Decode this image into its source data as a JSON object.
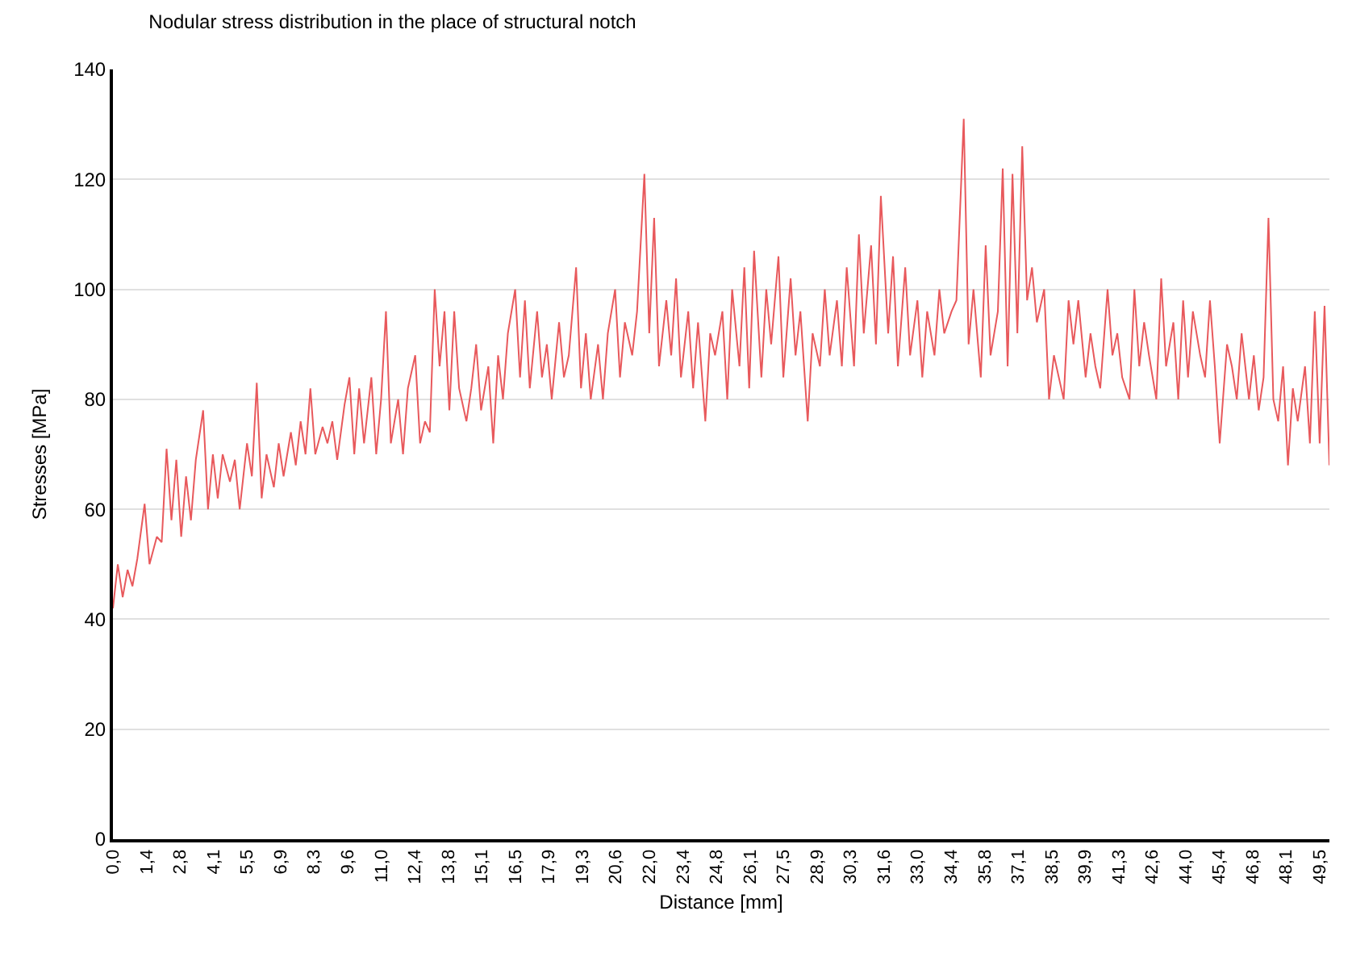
{
  "chart_data": {
    "type": "line",
    "title": "Nodular stress distribution in the place of structural notch",
    "xlabel": "Distance [mm]",
    "ylabel": "Stresses [MPa]",
    "x": [
      0.0,
      0.2,
      0.4,
      0.6,
      0.8,
      1.0,
      1.3,
      1.5,
      1.8,
      2.0,
      2.2,
      2.4,
      2.6,
      2.8,
      3.0,
      3.2,
      3.4,
      3.7,
      3.9,
      4.1,
      4.3,
      4.5,
      4.8,
      5.0,
      5.2,
      5.5,
      5.7,
      5.9,
      6.1,
      6.3,
      6.6,
      6.8,
      7.0,
      7.3,
      7.5,
      7.7,
      7.9,
      8.1,
      8.3,
      8.6,
      8.8,
      9.0,
      9.2,
      9.5,
      9.7,
      9.9,
      10.1,
      10.3,
      10.6,
      10.8,
      11.0,
      11.2,
      11.4,
      11.7,
      11.9,
      12.1,
      12.4,
      12.6,
      12.8,
      13.0,
      13.2,
      13.4,
      13.6,
      13.8,
      14.0,
      14.2,
      14.5,
      14.7,
      14.9,
      15.1,
      15.4,
      15.6,
      15.8,
      16.0,
      16.2,
      16.5,
      16.7,
      16.9,
      17.1,
      17.4,
      17.6,
      17.8,
      18.0,
      18.3,
      18.5,
      18.7,
      19.0,
      19.2,
      19.4,
      19.6,
      19.9,
      20.1,
      20.3,
      20.6,
      20.8,
      21.0,
      21.3,
      21.5,
      21.8,
      22.0,
      22.2,
      22.4,
      22.7,
      22.9,
      23.1,
      23.3,
      23.6,
      23.8,
      24.0,
      24.3,
      24.5,
      24.7,
      25.0,
      25.2,
      25.4,
      25.7,
      25.9,
      26.1,
      26.3,
      26.6,
      26.8,
      27.0,
      27.3,
      27.5,
      27.8,
      28.0,
      28.2,
      28.5,
      28.7,
      29.0,
      29.2,
      29.4,
      29.7,
      29.9,
      30.1,
      30.4,
      30.6,
      30.8,
      31.1,
      31.3,
      31.5,
      31.8,
      32.0,
      32.2,
      32.5,
      32.7,
      33.0,
      33.2,
      33.4,
      33.7,
      33.9,
      34.1,
      34.4,
      34.6,
      34.9,
      35.1,
      35.3,
      35.6,
      35.8,
      36.0,
      36.3,
      36.5,
      36.7,
      36.9,
      37.1,
      37.3,
      37.5,
      37.7,
      37.9,
      38.2,
      38.4,
      38.6,
      38.8,
      39.0,
      39.2,
      39.4,
      39.6,
      39.9,
      40.1,
      40.3,
      40.5,
      40.8,
      41.0,
      41.2,
      41.4,
      41.7,
      41.9,
      42.1,
      42.3,
      42.5,
      42.8,
      43.0,
      43.2,
      43.5,
      43.7,
      43.9,
      44.1,
      44.3,
      44.6,
      44.8,
      45.0,
      45.2,
      45.4,
      45.7,
      45.9,
      46.1,
      46.3,
      46.6,
      46.8,
      47.0,
      47.2,
      47.4,
      47.6,
      47.8,
      48.0,
      48.2,
      48.4,
      48.6,
      48.9,
      49.1,
      49.3,
      49.5,
      49.7,
      49.9
    ],
    "series": [
      {
        "color": "#e8595c",
        "values": [
          42,
          50,
          44,
          49,
          46,
          51,
          61,
          50,
          55,
          54,
          71,
          58,
          69,
          55,
          66,
          58,
          69,
          78,
          60,
          70,
          62,
          70,
          65,
          69,
          60,
          72,
          66,
          83,
          62,
          70,
          64,
          72,
          66,
          74,
          68,
          76,
          70,
          82,
          70,
          75,
          72,
          76,
          69,
          79,
          84,
          70,
          82,
          72,
          84,
          70,
          80,
          96,
          72,
          80,
          70,
          82,
          88,
          72,
          76,
          74,
          100,
          86,
          96,
          78,
          96,
          82,
          76,
          82,
          90,
          78,
          86,
          72,
          88,
          80,
          92,
          100,
          84,
          98,
          82,
          96,
          84,
          90,
          80,
          94,
          84,
          88,
          104,
          82,
          92,
          80,
          90,
          80,
          92,
          100,
          84,
          94,
          88,
          96,
          121,
          92,
          113,
          86,
          98,
          88,
          102,
          84,
          96,
          82,
          94,
          76,
          92,
          88,
          96,
          80,
          100,
          86,
          104,
          82,
          107,
          84,
          100,
          90,
          106,
          84,
          102,
          88,
          96,
          76,
          92,
          86,
          100,
          88,
          98,
          86,
          104,
          86,
          110,
          92,
          108,
          90,
          117,
          92,
          106,
          86,
          104,
          88,
          98,
          84,
          96,
          88,
          100,
          92,
          96,
          98,
          131,
          90,
          100,
          84,
          108,
          88,
          96,
          122,
          86,
          121,
          92,
          126,
          98,
          104,
          94,
          100,
          80,
          88,
          84,
          80,
          98,
          90,
          98,
          84,
          92,
          86,
          82,
          100,
          88,
          92,
          84,
          80,
          100,
          86,
          94,
          88,
          80,
          102,
          86,
          94,
          80,
          98,
          84,
          96,
          88,
          84,
          98,
          86,
          72,
          90,
          86,
          80,
          92,
          80,
          88,
          78,
          84,
          113,
          80,
          76,
          86,
          68,
          82,
          76,
          86,
          72,
          96,
          72,
          97,
          68
        ]
      }
    ],
    "xlim": [
      0,
      49.9
    ],
    "xticks": [
      {
        "value": 0,
        "label": "0,0"
      },
      {
        "value": 1.375,
        "label": "1,4"
      },
      {
        "value": 2.75,
        "label": "2,8"
      },
      {
        "value": 4.125,
        "label": "4,1"
      },
      {
        "value": 5.5,
        "label": "5,5"
      },
      {
        "value": 6.875,
        "label": "6,9"
      },
      {
        "value": 8.25,
        "label": "8,3"
      },
      {
        "value": 9.625,
        "label": "9,6"
      },
      {
        "value": 11,
        "label": "11,0"
      },
      {
        "value": 12.375,
        "label": "12,4"
      },
      {
        "value": 13.75,
        "label": "13,8"
      },
      {
        "value": 15.125,
        "label": "15,1"
      },
      {
        "value": 16.5,
        "label": "16,5"
      },
      {
        "value": 17.875,
        "label": "17,9"
      },
      {
        "value": 19.25,
        "label": "19,3"
      },
      {
        "value": 20.625,
        "label": "20,6"
      },
      {
        "value": 22,
        "label": "22,0"
      },
      {
        "value": 23.375,
        "label": "23,4"
      },
      {
        "value": 24.75,
        "label": "24,8"
      },
      {
        "value": 26.125,
        "label": "26,1"
      },
      {
        "value": 27.5,
        "label": "27,5"
      },
      {
        "value": 28.875,
        "label": "28,9"
      },
      {
        "value": 30.25,
        "label": "30,3"
      },
      {
        "value": 31.625,
        "label": "31,6"
      },
      {
        "value": 33,
        "label": "33,0"
      },
      {
        "value": 34.375,
        "label": "34,4"
      },
      {
        "value": 35.75,
        "label": "35,8"
      },
      {
        "value": 37.125,
        "label": "37,1"
      },
      {
        "value": 38.5,
        "label": "38,5"
      },
      {
        "value": 39.875,
        "label": "39,9"
      },
      {
        "value": 41.25,
        "label": "41,3"
      },
      {
        "value": 42.625,
        "label": "42,6"
      },
      {
        "value": 44,
        "label": "44,0"
      },
      {
        "value": 45.375,
        "label": "45,4"
      },
      {
        "value": 46.75,
        "label": "46,8"
      },
      {
        "value": 48.125,
        "label": "48,1"
      },
      {
        "value": 49.5,
        "label": "49,5"
      }
    ],
    "ylim": [
      0,
      140
    ],
    "yticks": [
      0,
      20,
      40,
      60,
      80,
      100,
      120,
      140
    ],
    "grid": "y"
  }
}
